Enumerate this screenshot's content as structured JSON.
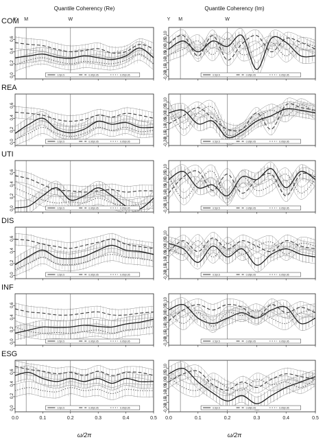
{
  "chart_data": {
    "type": "line",
    "column_titles": [
      "Quantile Coherency (Re)",
      "Quantile Coherency (Im)"
    ],
    "row_labels": [
      "COM",
      "REA",
      "UTI",
      "DIS",
      "INF",
      "ESG"
    ],
    "x_marks": [
      {
        "label": "Y",
        "x": 0.0
      },
      {
        "label": "M",
        "x": 0.04
      },
      {
        "label": "W",
        "x": 0.2
      }
    ],
    "xlabel": "ω/2π",
    "xlim": [
      0,
      0.5
    ],
    "xticks": [
      "0.0",
      "0.1",
      "0.2",
      "0.3",
      "0.4",
      "0.5"
    ],
    "re_panel": {
      "ylim": [
        -0.05,
        0.8
      ],
      "yticks": [
        "0.0",
        "0.2",
        "0.4",
        "0.6"
      ]
    },
    "im_panel": {
      "ylim": [
        -0.22,
        0.16
      ],
      "yticks": [
        "-0.20",
        "-0.15",
        "-0.10",
        "-0.05",
        "0.00",
        "0.05",
        "0.10"
      ]
    },
    "legend": [
      "0.5|0.5",
      "0.95|0.05",
      "0.05|0.95"
    ],
    "series": [
      {
        "name": "0.5|0.5",
        "style": "solid",
        "color": "#1e1e1e"
      },
      {
        "name": "0.95|0.05",
        "style": "dashed",
        "color": "#3a3a3a"
      },
      {
        "name": "0.05|0.95",
        "style": "dotted",
        "color": "#555555"
      }
    ],
    "x": [
      0.0,
      0.05,
      0.1,
      0.15,
      0.2,
      0.25,
      0.3,
      0.35,
      0.4,
      0.45,
      0.5
    ],
    "panels": [
      {
        "row": "COM",
        "part": "Re",
        "values": [
          [
            0.3,
            0.33,
            0.36,
            0.31,
            0.29,
            0.33,
            0.3,
            0.27,
            0.33,
            0.46,
            0.3
          ],
          [
            0.55,
            0.52,
            0.5,
            0.44,
            0.4,
            0.42,
            0.45,
            0.38,
            0.4,
            0.52,
            0.45
          ],
          [
            0.18,
            0.26,
            0.3,
            0.24,
            0.2,
            0.24,
            0.22,
            0.2,
            0.26,
            0.36,
            0.2
          ]
        ]
      },
      {
        "row": "COM",
        "part": "Im",
        "values": [
          [
            0.0,
            0.06,
            -0.02,
            0.06,
            0.02,
            0.1,
            -0.15,
            0.08,
            0.05,
            -0.05,
            -0.05
          ],
          [
            0.04,
            0.1,
            -0.05,
            0.1,
            -0.08,
            0.04,
            0.1,
            -0.02,
            0.08,
            0.05,
            0.0
          ],
          [
            -0.04,
            0.0,
            0.06,
            -0.04,
            0.08,
            -0.04,
            0.0,
            0.05,
            -0.05,
            0.04,
            0.02
          ]
        ]
      },
      {
        "row": "REA",
        "part": "Re",
        "values": [
          [
            0.15,
            0.3,
            0.4,
            0.22,
            0.16,
            0.22,
            0.35,
            0.3,
            0.33,
            0.25,
            0.25
          ],
          [
            0.5,
            0.48,
            0.45,
            0.38,
            0.35,
            0.38,
            0.45,
            0.42,
            0.48,
            0.45,
            0.4
          ],
          [
            0.05,
            0.15,
            0.25,
            0.15,
            0.1,
            0.15,
            0.25,
            0.2,
            0.25,
            0.18,
            0.2
          ]
        ]
      },
      {
        "row": "REA",
        "part": "Im",
        "values": [
          [
            0.02,
            0.04,
            -0.06,
            -0.04,
            -0.16,
            -0.12,
            -0.04,
            0.0,
            0.05,
            0.04,
            0.02
          ],
          [
            -0.06,
            0.0,
            0.06,
            -0.02,
            -0.1,
            -0.1,
            0.02,
            -0.1,
            0.08,
            0.06,
            0.04
          ],
          [
            0.06,
            -0.1,
            0.02,
            0.06,
            -0.14,
            -0.1,
            -0.02,
            0.04,
            0.0,
            0.08,
            0.02
          ]
        ]
      },
      {
        "row": "UTI",
        "part": "Re",
        "values": [
          [
            0.02,
            0.05,
            0.22,
            0.35,
            0.15,
            0.22,
            0.35,
            0.22,
            0.05,
            0.0,
            0.18
          ],
          [
            0.55,
            0.5,
            0.4,
            0.32,
            0.3,
            0.28,
            0.3,
            0.32,
            0.28,
            0.3,
            0.3
          ],
          [
            0.35,
            0.25,
            0.15,
            0.1,
            0.12,
            0.1,
            0.18,
            0.1,
            0.05,
            0.08,
            0.12
          ]
        ]
      },
      {
        "row": "UTI",
        "part": "Im",
        "values": [
          [
            0.02,
            0.08,
            -0.04,
            -0.02,
            -0.1,
            0.04,
            0.02,
            0.1,
            -0.04,
            0.08,
            0.02
          ],
          [
            -0.08,
            0.04,
            0.08,
            -0.06,
            0.06,
            -0.08,
            0.02,
            0.06,
            -0.1,
            0.06,
            0.04
          ],
          [
            0.04,
            -0.12,
            0.0,
            0.08,
            -0.12,
            0.04,
            -0.06,
            -0.02,
            0.06,
            -0.08,
            0.02
          ]
        ]
      },
      {
        "row": "DIS",
        "part": "Re",
        "values": [
          [
            0.18,
            0.32,
            0.42,
            0.3,
            0.28,
            0.32,
            0.42,
            0.5,
            0.42,
            0.4,
            0.35
          ],
          [
            0.6,
            0.58,
            0.52,
            0.48,
            0.45,
            0.5,
            0.55,
            0.6,
            0.52,
            0.48,
            0.45
          ],
          [
            0.1,
            0.2,
            0.3,
            0.2,
            0.18,
            0.22,
            0.3,
            0.35,
            0.3,
            0.28,
            0.25
          ]
        ]
      },
      {
        "row": "DIS",
        "part": "Im",
        "values": [
          [
            0.04,
            0.0,
            -0.1,
            0.02,
            -0.06,
            0.0,
            -0.12,
            -0.04,
            0.0,
            -0.04,
            -0.06
          ],
          [
            -0.02,
            0.06,
            -0.02,
            0.08,
            0.0,
            0.06,
            0.02,
            -0.02,
            0.06,
            0.02,
            0.0
          ],
          [
            0.02,
            -0.04,
            0.06,
            -0.06,
            0.04,
            -0.04,
            0.02,
            0.05,
            -0.04,
            0.04,
            0.02
          ]
        ]
      },
      {
        "row": "INF",
        "part": "Re",
        "values": [
          [
            0.15,
            0.2,
            0.25,
            0.24,
            0.25,
            0.28,
            0.26,
            0.25,
            0.3,
            0.33,
            0.38
          ],
          [
            0.55,
            0.5,
            0.48,
            0.45,
            0.45,
            0.48,
            0.5,
            0.45,
            0.45,
            0.48,
            0.5
          ],
          [
            0.25,
            0.18,
            0.15,
            0.16,
            0.15,
            0.18,
            0.2,
            0.15,
            0.2,
            0.22,
            0.25
          ]
        ]
      },
      {
        "row": "INF",
        "part": "Im",
        "values": [
          [
            0.04,
            0.08,
            -0.02,
            -0.06,
            -0.02,
            0.02,
            -0.02,
            0.04,
            0.06,
            -0.06,
            -0.02
          ],
          [
            -0.04,
            0.04,
            0.08,
            0.04,
            0.08,
            0.06,
            -0.02,
            0.08,
            0.02,
            0.06,
            0.02
          ],
          [
            0.02,
            -0.06,
            0.02,
            -0.08,
            0.02,
            0.0,
            0.04,
            -0.02,
            -0.06,
            0.02,
            0.04
          ]
        ]
      },
      {
        "row": "ESG",
        "part": "Re",
        "values": [
          [
            0.55,
            0.6,
            0.5,
            0.45,
            0.5,
            0.45,
            0.5,
            0.42,
            0.5,
            0.45,
            0.45
          ],
          [
            0.7,
            0.65,
            0.62,
            0.58,
            0.6,
            0.55,
            0.62,
            0.55,
            0.6,
            0.6,
            0.55
          ],
          [
            0.3,
            0.35,
            0.3,
            0.28,
            0.35,
            0.3,
            0.32,
            0.25,
            0.32,
            0.3,
            0.3
          ]
        ]
      },
      {
        "row": "ESG",
        "part": "Im",
        "values": [
          [
            0.06,
            0.1,
            0.0,
            -0.08,
            -0.14,
            -0.1,
            -0.16,
            -0.1,
            -0.04,
            0.0,
            0.04
          ],
          [
            0.0,
            0.06,
            0.08,
            -0.02,
            -0.06,
            0.0,
            -0.04,
            0.02,
            0.06,
            0.04,
            0.02
          ],
          [
            0.04,
            -0.04,
            -0.06,
            0.02,
            -0.04,
            -0.06,
            0.02,
            -0.02,
            0.0,
            -0.04,
            0.02
          ]
        ]
      }
    ]
  }
}
